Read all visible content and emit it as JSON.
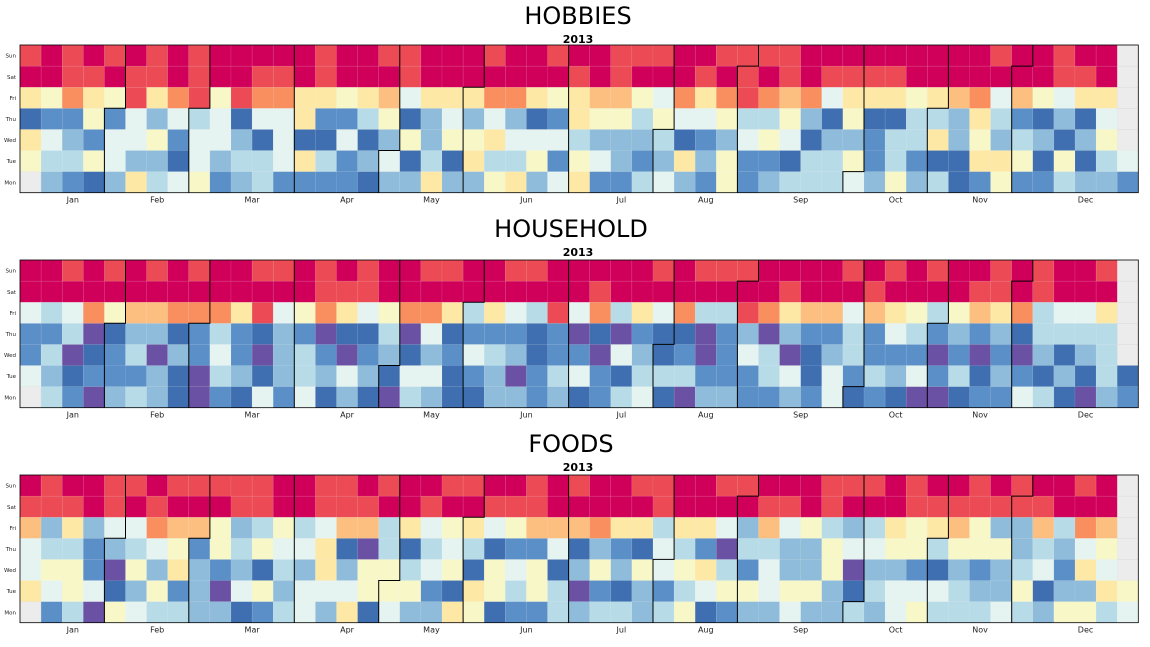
{
  "chart_data": [
    {
      "type": "heatmap",
      "title": "HOBBIES",
      "subtitle": "2013",
      "year": 2013,
      "day_labels": [
        "Mon",
        "Tue",
        "Wed",
        "Thu",
        "Fri",
        "Sat",
        "Sun"
      ],
      "month_labels": [
        "Jan",
        "Feb",
        "Mar",
        "Apr",
        "May",
        "Jun",
        "Jul",
        "Aug",
        "Sep",
        "Oct",
        "Nov",
        "Dec"
      ],
      "colormap": [
        "#5e4fa2",
        "#3288bd",
        "#66c2a5",
        "#abdda4",
        "#e6f598",
        "#ffffbf",
        "#fee08b",
        "#fdae61",
        "#f46d43",
        "#d53e4f",
        "#9e0142"
      ],
      "grid": false,
      "legend": "none"
    },
    {
      "type": "heatmap",
      "title": "HOUSEHOLD",
      "subtitle": "2013",
      "year": 2013,
      "day_labels": [
        "Mon",
        "Tue",
        "Wed",
        "Thu",
        "Fri",
        "Sat",
        "Sun"
      ],
      "month_labels": [
        "Jan",
        "Feb",
        "Mar",
        "Apr",
        "May",
        "Jun",
        "Jul",
        "Aug",
        "Sep",
        "Oct",
        "Nov",
        "Dec"
      ],
      "grid": false,
      "legend": "none"
    },
    {
      "type": "heatmap",
      "title": "FOODS",
      "subtitle": "2013",
      "year": 2013,
      "day_labels": [
        "Mon",
        "Tue",
        "Wed",
        "Thu",
        "Fri",
        "Sat",
        "Sun"
      ],
      "month_labels": [
        "Jan",
        "Feb",
        "Mar",
        "Apr",
        "May",
        "Jun",
        "Jul",
        "Aug",
        "Sep",
        "Oct",
        "Nov",
        "Dec"
      ],
      "grid": false,
      "legend": "none"
    }
  ],
  "colors": {
    "low": "#6a51a3",
    "mid": "#ffffbf",
    "high": "#d0005a",
    "empty_cell": "#ececec",
    "month_border": "#000000"
  }
}
